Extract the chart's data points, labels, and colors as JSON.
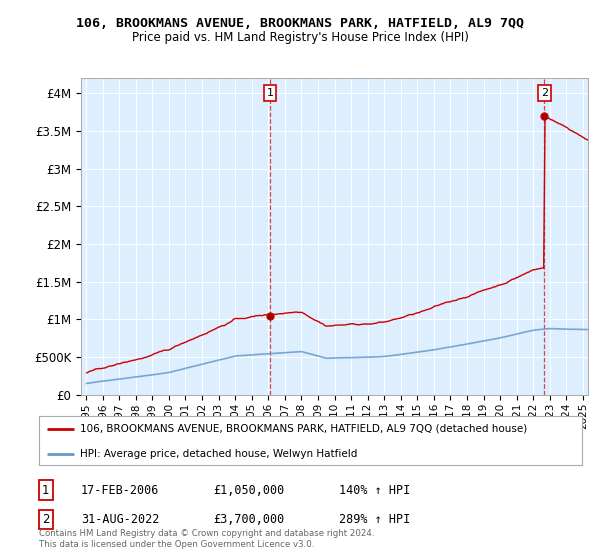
{
  "title": "106, BROOKMANS AVENUE, BROOKMANS PARK, HATFIELD, AL9 7QQ",
  "subtitle": "Price paid vs. HM Land Registry's House Price Index (HPI)",
  "legend_line1": "106, BROOKMANS AVENUE, BROOKMANS PARK, HATFIELD, AL9 7QQ (detached house)",
  "legend_line2": "HPI: Average price, detached house, Welwyn Hatfield",
  "annotation1_date": "17-FEB-2006",
  "annotation1_price": "£1,050,000",
  "annotation1_hpi": "140% ↑ HPI",
  "annotation2_date": "31-AUG-2022",
  "annotation2_price": "£3,700,000",
  "annotation2_hpi": "289% ↑ HPI",
  "copyright": "Contains HM Land Registry data © Crown copyright and database right 2024.\nThis data is licensed under the Open Government Licence v3.0.",
  "plot_bg_color": "#ddeeff",
  "ylim": [
    0,
    4200000
  ],
  "yticks": [
    0,
    500000,
    1000000,
    1500000,
    2000000,
    2500000,
    3000000,
    3500000,
    4000000
  ],
  "ytick_labels": [
    "£0",
    "£500K",
    "£1M",
    "£1.5M",
    "£2M",
    "£2.5M",
    "£3M",
    "£3.5M",
    "£4M"
  ],
  "hpi_color": "#6699cc",
  "price_color": "#cc0000",
  "marker1_x": 2006.12,
  "marker1_y": 1050000,
  "marker2_x": 2022.67,
  "marker2_y": 3700000,
  "xlim": [
    1994.7,
    2025.3
  ],
  "xticks": [
    1995,
    1996,
    1997,
    1998,
    1999,
    2000,
    2001,
    2002,
    2003,
    2004,
    2005,
    2006,
    2007,
    2008,
    2009,
    2010,
    2011,
    2012,
    2013,
    2014,
    2015,
    2016,
    2017,
    2018,
    2019,
    2020,
    2021,
    2022,
    2023,
    2024,
    2025
  ]
}
